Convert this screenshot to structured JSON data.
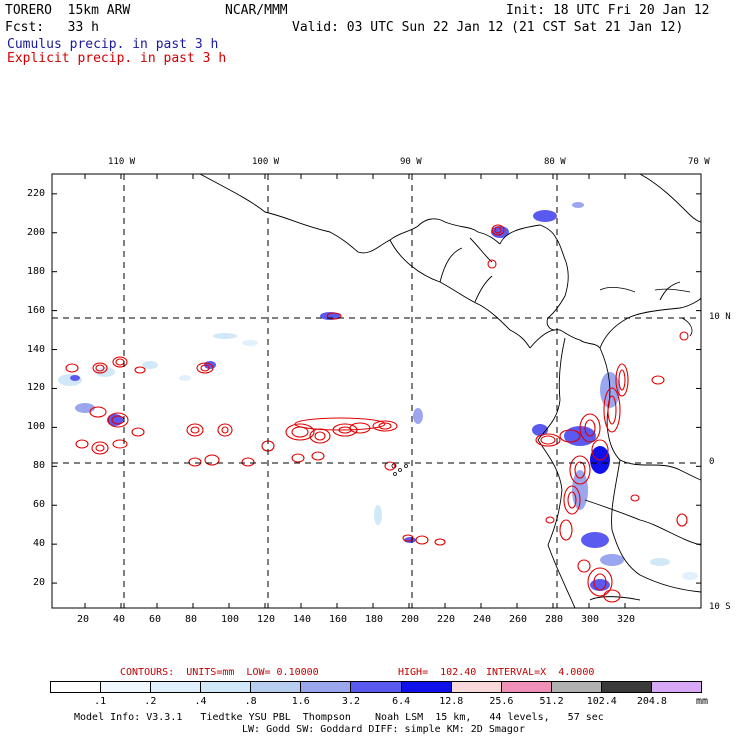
{
  "header": {
    "model": "TORERO  15km ARW",
    "center": "NCAR/MMM",
    "init": "Init: 18 UTC Fri 20 Jan 12",
    "fcst": "Fcst:   33 h",
    "valid": "Valid: 03 UTC Sun 22 Jan 12 (21 CST Sat 21 Jan 12)"
  },
  "legend_lines": {
    "cumulus": "Cumulus precip. in past 3 h",
    "explicit": "Explicit precip. in past 3 h"
  },
  "axes": {
    "x_ticks": [
      "20",
      "40",
      "60",
      "80",
      "100",
      "120",
      "140",
      "160",
      "180",
      "200",
      "220",
      "240",
      "260",
      "280",
      "300",
      "320"
    ],
    "y_ticks": [
      "20",
      "40",
      "60",
      "80",
      "100",
      "120",
      "140",
      "160",
      "180",
      "200",
      "220"
    ],
    "lon_labels": [
      "110 W",
      "100 W",
      "90 W",
      "80 W",
      "70 W"
    ],
    "lat_labels": [
      "10 N",
      "0",
      "10 S"
    ]
  },
  "contour_info": {
    "contours": "CONTOURS:  UNITS=mm  LOW= 0.10000",
    "high": "HIGH=  102.40",
    "interval": "INTERVAL=X  4.0000"
  },
  "colorbar": {
    "labels": [
      ".1",
      ".2",
      ".4",
      ".8",
      "1.6",
      "3.2",
      "6.4",
      "12.8",
      "25.6",
      "51.2",
      "102.4",
      "204.8"
    ],
    "unit": "mm",
    "colors": [
      "#ffffff",
      "#f0f7ff",
      "#e0f0ff",
      "#d0e8f8",
      "#b8cef0",
      "#9aa6ee",
      "#5a5af0",
      "#1010e8",
      "#f8d8d8",
      "#f090b8",
      "#b0b0b0",
      "#3a3a3a",
      "#d8a8f8"
    ]
  },
  "footer": {
    "line1": "Model Info: V3.3.1   Tiedtke YSU PBL  Thompson    Noah LSM  15 km,   44 levels,   57 sec",
    "line2": "LW: Godd SW: Goddard DIFF: simple KM: 2D Smagor"
  },
  "colors": {
    "cumulus_text": "#1a1a9c",
    "explicit_text": "#d00000",
    "contour": "#e00000"
  }
}
